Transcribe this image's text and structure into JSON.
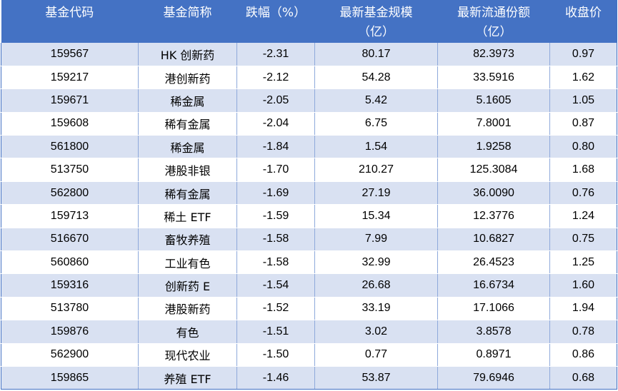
{
  "table": {
    "headers": [
      {
        "line1": "基金代码",
        "line2": ""
      },
      {
        "line1": "基金简称",
        "line2": ""
      },
      {
        "line1": "跌幅（%）",
        "line2": ""
      },
      {
        "line1": "最新基金规模",
        "line2": "（亿）"
      },
      {
        "line1": "最新流通份额",
        "line2": "（亿）"
      },
      {
        "line1": "收盘价",
        "line2": ""
      }
    ],
    "rows": [
      {
        "code": "159567",
        "name": "HK 创新药",
        "change": "-2.31",
        "scale": "80.17",
        "shares": "82.3973",
        "price": "0.97"
      },
      {
        "code": "159217",
        "name": "港创新药",
        "change": "-2.12",
        "scale": "54.28",
        "shares": "33.5916",
        "price": "1.62"
      },
      {
        "code": "159671",
        "name": "稀金属",
        "change": "-2.05",
        "scale": "5.42",
        "shares": "5.1605",
        "price": "1.05"
      },
      {
        "code": "159608",
        "name": "稀有金属",
        "change": "-2.04",
        "scale": "6.75",
        "shares": "7.8001",
        "price": "0.87"
      },
      {
        "code": "561800",
        "name": "稀金属",
        "change": "-1.84",
        "scale": "1.54",
        "shares": "1.9258",
        "price": "0.80"
      },
      {
        "code": "513750",
        "name": "港股非银",
        "change": "-1.70",
        "scale": "210.27",
        "shares": "125.3084",
        "price": "1.68"
      },
      {
        "code": "562800",
        "name": "稀有金属",
        "change": "-1.69",
        "scale": "27.19",
        "shares": "36.0090",
        "price": "0.76"
      },
      {
        "code": "159713",
        "name": "稀土 ETF",
        "change": "-1.59",
        "scale": "15.34",
        "shares": "12.3776",
        "price": "1.24"
      },
      {
        "code": "516670",
        "name": "畜牧养殖",
        "change": "-1.58",
        "scale": "7.99",
        "shares": "10.6827",
        "price": "0.75"
      },
      {
        "code": "560860",
        "name": "工业有色",
        "change": "-1.58",
        "scale": "32.99",
        "shares": "26.4523",
        "price": "1.25"
      },
      {
        "code": "159316",
        "name": "创新药 E",
        "change": "-1.54",
        "scale": "26.68",
        "shares": "16.6734",
        "price": "1.60"
      },
      {
        "code": "513780",
        "name": "港股新药",
        "change": "-1.52",
        "scale": "33.19",
        "shares": "17.1066",
        "price": "1.94"
      },
      {
        "code": "159876",
        "name": "有色",
        "change": "-1.51",
        "scale": "3.02",
        "shares": "3.8578",
        "price": "0.78"
      },
      {
        "code": "562900",
        "name": "现代农业",
        "change": "-1.50",
        "scale": "0.77",
        "shares": "0.8971",
        "price": "0.86"
      },
      {
        "code": "159865",
        "name": "养殖 ETF",
        "change": "-1.46",
        "scale": "53.87",
        "shares": "79.6946",
        "price": "0.68"
      }
    ]
  }
}
